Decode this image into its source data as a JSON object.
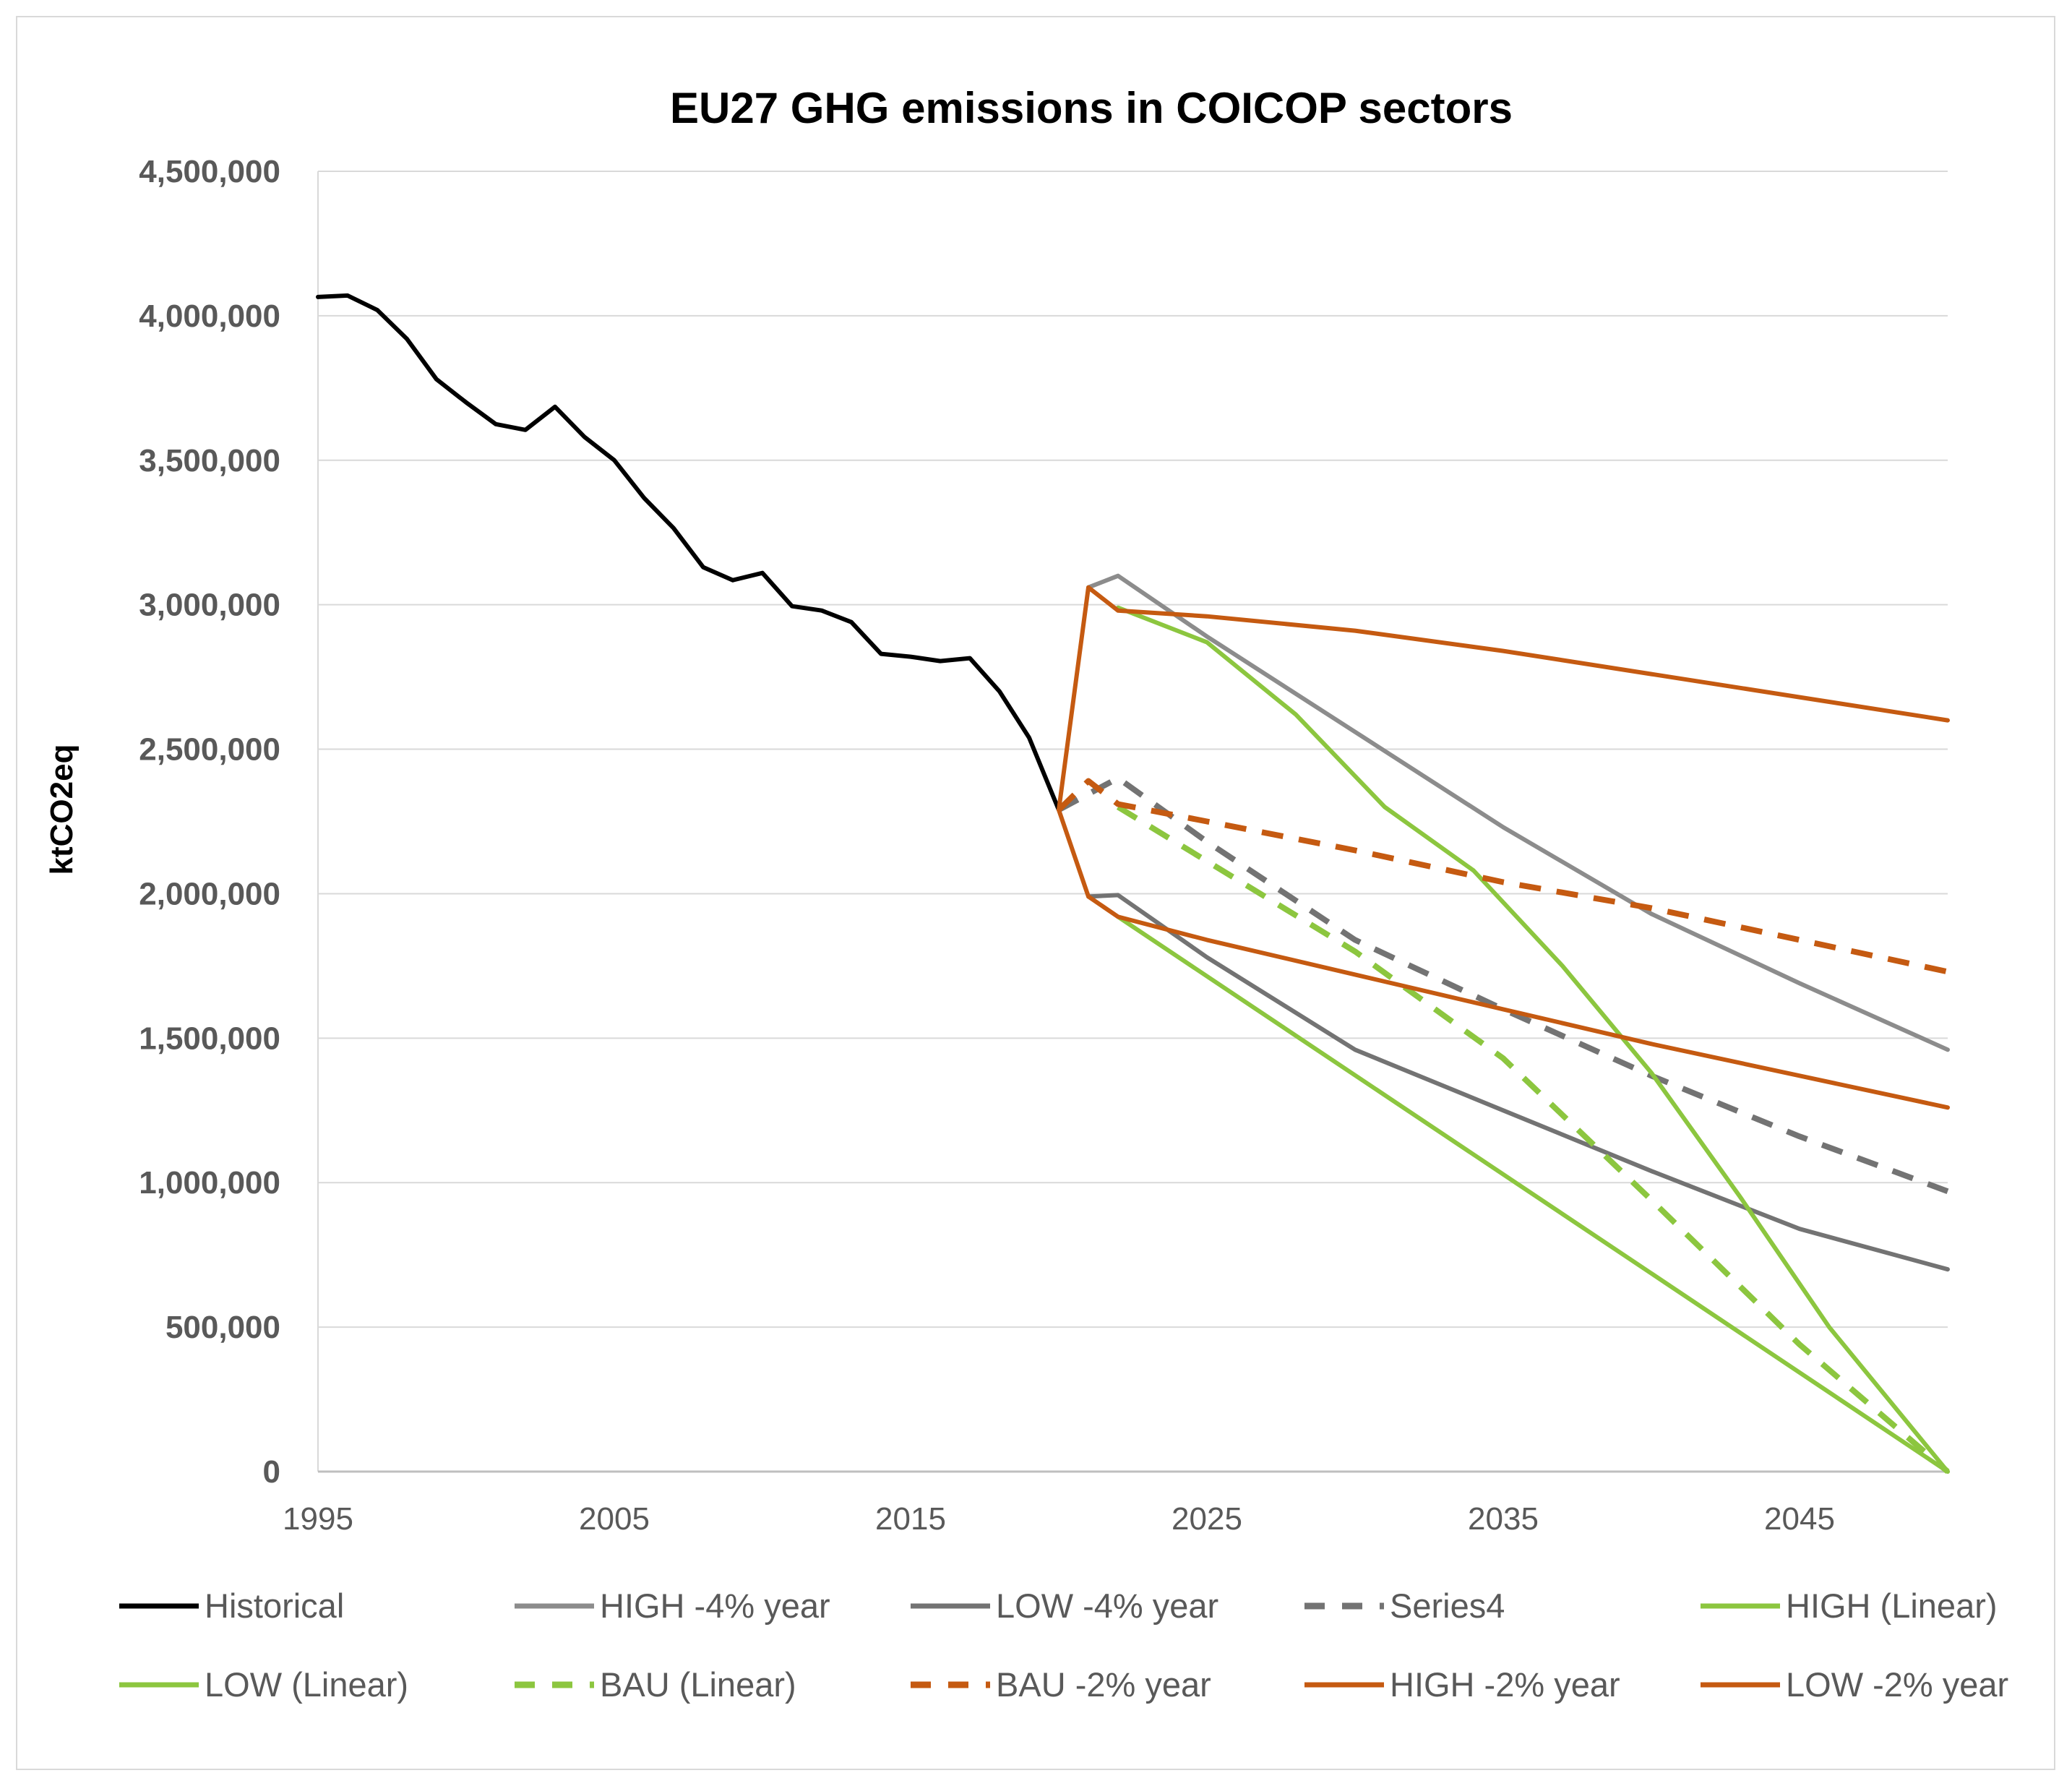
{
  "chart_data": {
    "type": "line",
    "title": "EU27 GHG emissions in COICOP sectors",
    "xlabel": "",
    "ylabel": "ktCO2eq",
    "xlim": [
      1995,
      2050
    ],
    "ylim": [
      0,
      4500000
    ],
    "x_ticks": [
      1995,
      2005,
      2015,
      2025,
      2035,
      2045
    ],
    "x_tick_labels": [
      "1995",
      "2005",
      "2015",
      "2025",
      "2035",
      "2045"
    ],
    "y_ticks": [
      0,
      500000,
      1000000,
      1500000,
      2000000,
      2500000,
      3000000,
      3500000,
      4000000,
      4500000
    ],
    "y_tick_labels": [
      "0",
      "500,000",
      "1,000,000",
      "1,500,000",
      "2,000,000",
      "2,500,000",
      "3,000,000",
      "3,500,000",
      "4,000,000",
      "4,500,000"
    ],
    "grid": true,
    "legend_position": "bottom",
    "series": [
      {
        "name": "Historical",
        "color": "#000000",
        "dashed": false,
        "points": [
          [
            1995,
            4065000
          ],
          [
            1996,
            4070000
          ],
          [
            1997,
            4020000
          ],
          [
            1998,
            3920000
          ],
          [
            1999,
            3780000
          ],
          [
            2000,
            3700000
          ],
          [
            2001,
            3625000
          ],
          [
            2002,
            3605000
          ],
          [
            2003,
            3685000
          ],
          [
            2004,
            3580000
          ],
          [
            2005,
            3500000
          ],
          [
            2006,
            3370000
          ],
          [
            2007,
            3265000
          ],
          [
            2008,
            3130000
          ],
          [
            2009,
            3085000
          ],
          [
            2010,
            3110000
          ],
          [
            2011,
            2995000
          ],
          [
            2012,
            2980000
          ],
          [
            2013,
            2940000
          ],
          [
            2014,
            2830000
          ],
          [
            2015,
            2820000
          ],
          [
            2016,
            2805000
          ],
          [
            2017,
            2815000
          ],
          [
            2018,
            2700000
          ],
          [
            2019,
            2540000
          ],
          [
            2020,
            2290000
          ]
        ]
      },
      {
        "name": "HIGH -4% year",
        "color": "#8c8c8c",
        "dashed": false,
        "points": [
          [
            2021,
            3060000
          ],
          [
            2022,
            3100000
          ],
          [
            2025,
            2890000
          ],
          [
            2030,
            2560000
          ],
          [
            2035,
            2230000
          ],
          [
            2040,
            1930000
          ],
          [
            2045,
            1690000
          ],
          [
            2050,
            1460000
          ]
        ]
      },
      {
        "name": "LOW -4% year",
        "color": "#737373",
        "dashed": false,
        "points": [
          [
            2021,
            1990000
          ],
          [
            2022,
            1995000
          ],
          [
            2025,
            1780000
          ],
          [
            2030,
            1460000
          ],
          [
            2035,
            1250000
          ],
          [
            2040,
            1040000
          ],
          [
            2045,
            840000
          ],
          [
            2050,
            700000
          ]
        ]
      },
      {
        "name": "Series4",
        "color": "#737373",
        "dashed": true,
        "points": [
          [
            2020,
            2290000
          ],
          [
            2022,
            2400000
          ],
          [
            2025,
            2180000
          ],
          [
            2030,
            1840000
          ],
          [
            2035,
            1600000
          ],
          [
            2040,
            1370000
          ],
          [
            2045,
            1160000
          ],
          [
            2050,
            970000
          ]
        ]
      },
      {
        "name": "HIGH (Linear)",
        "color": "#8cc63f",
        "dashed": false,
        "points": [
          [
            2022,
            2990000
          ],
          [
            2025,
            2870000
          ],
          [
            2028,
            2620000
          ],
          [
            2031,
            2300000
          ],
          [
            2034,
            2080000
          ],
          [
            2037,
            1750000
          ],
          [
            2040,
            1380000
          ],
          [
            2043,
            950000
          ],
          [
            2046,
            500000
          ],
          [
            2050,
            0
          ]
        ]
      },
      {
        "name": "LOW (Linear)",
        "color": "#8cc63f",
        "dashed": false,
        "points": [
          [
            2022,
            1920000
          ],
          [
            2050,
            0
          ]
        ]
      },
      {
        "name": "BAU (Linear)",
        "color": "#8cc63f",
        "dashed": true,
        "points": [
          [
            2022,
            2300000
          ],
          [
            2030,
            1800000
          ],
          [
            2035,
            1430000
          ],
          [
            2040,
            940000
          ],
          [
            2045,
            440000
          ],
          [
            2050,
            0
          ]
        ]
      },
      {
        "name": "BAU -2% year",
        "color": "#c55a11",
        "dashed": true,
        "points": [
          [
            2020,
            2290000
          ],
          [
            2021,
            2390000
          ],
          [
            2022,
            2310000
          ],
          [
            2025,
            2250000
          ],
          [
            2030,
            2150000
          ],
          [
            2035,
            2040000
          ],
          [
            2040,
            1950000
          ],
          [
            2045,
            1840000
          ],
          [
            2050,
            1730000
          ]
        ]
      },
      {
        "name": "HIGH -2% year",
        "color": "#c55a11",
        "dashed": false,
        "points": [
          [
            2020,
            2290000
          ],
          [
            2021,
            3060000
          ],
          [
            2022,
            2980000
          ],
          [
            2025,
            2960000
          ],
          [
            2030,
            2910000
          ],
          [
            2035,
            2840000
          ],
          [
            2040,
            2760000
          ],
          [
            2045,
            2680000
          ],
          [
            2050,
            2600000
          ]
        ]
      },
      {
        "name": "LOW -2% year",
        "color": "#c55a11",
        "dashed": false,
        "points": [
          [
            2020,
            2290000
          ],
          [
            2021,
            1990000
          ],
          [
            2022,
            1920000
          ],
          [
            2025,
            1840000
          ],
          [
            2030,
            1720000
          ],
          [
            2035,
            1600000
          ],
          [
            2040,
            1480000
          ],
          [
            2045,
            1370000
          ],
          [
            2050,
            1260000
          ]
        ]
      }
    ]
  }
}
